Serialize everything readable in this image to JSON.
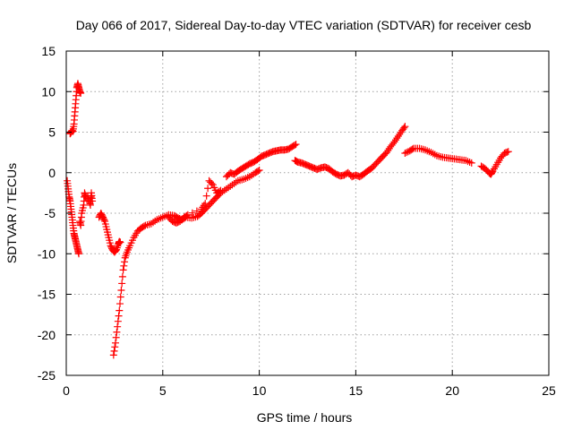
{
  "chart_data": {
    "type": "scatter",
    "title": "Day 066 of 2017, Sidereal Day-to-day VTEC variation (SDTVAR) for receiver cesb",
    "xlabel": "GPS time / hours",
    "ylabel": "SDTVAR / TECUs",
    "xlim": [
      0,
      25
    ],
    "ylim": [
      -25,
      15
    ],
    "xticks": [
      0,
      5,
      10,
      15,
      20,
      25
    ],
    "yticks": [
      -25,
      -20,
      -15,
      -10,
      -5,
      0,
      5,
      10,
      15
    ],
    "xtick_labels": [
      "0",
      "5",
      "10",
      "15",
      "20",
      "25"
    ],
    "ytick_labels": [
      "-25",
      "-20",
      "-15",
      "-10",
      "-5",
      "0",
      "5",
      "10",
      "15"
    ],
    "grid": true,
    "marker": "+",
    "color": "#ff0000",
    "series": [
      {
        "name": "s1",
        "points": [
          [
            0.05,
            -1
          ],
          [
            0.1,
            -2
          ],
          [
            0.15,
            -3
          ],
          [
            0.2,
            -3.5
          ],
          [
            0.25,
            -4.5
          ],
          [
            0.3,
            -5.5
          ],
          [
            0.35,
            -6.5
          ],
          [
            0.4,
            -7.5
          ],
          [
            0.45,
            -8
          ],
          [
            0.5,
            -8.5
          ],
          [
            0.55,
            -9
          ],
          [
            0.6,
            -9.5
          ],
          [
            0.65,
            -10
          ]
        ]
      },
      {
        "name": "s2",
        "points": [
          [
            0.2,
            4.8
          ],
          [
            0.25,
            5
          ],
          [
            0.3,
            5.2
          ],
          [
            0.35,
            5.1
          ],
          [
            0.4,
            6
          ],
          [
            0.45,
            7.5
          ],
          [
            0.5,
            9
          ],
          [
            0.55,
            10.5
          ],
          [
            0.6,
            11
          ],
          [
            0.65,
            10.5
          ],
          [
            0.7,
            10
          ],
          [
            0.75,
            9.8
          ]
        ]
      },
      {
        "name": "s3",
        "points": [
          [
            0.7,
            -6
          ],
          [
            0.75,
            -6.5
          ],
          [
            0.8,
            -5
          ],
          [
            0.9,
            -4
          ],
          [
            0.95,
            -2.5
          ],
          [
            1.0,
            -3
          ],
          [
            1.2,
            -3.5
          ],
          [
            1.25,
            -4
          ],
          [
            1.3,
            -2.5
          ],
          [
            1.35,
            -3.5
          ]
        ]
      },
      {
        "name": "s4",
        "points": [
          [
            1.7,
            -5.5
          ],
          [
            1.8,
            -5
          ],
          [
            1.9,
            -5.5
          ],
          [
            2.0,
            -6
          ],
          [
            2.1,
            -7
          ],
          [
            2.2,
            -8
          ],
          [
            2.3,
            -9
          ],
          [
            2.4,
            -9.5
          ],
          [
            2.5,
            -9.8
          ],
          [
            2.6,
            -9.5
          ],
          [
            2.7,
            -8.8
          ],
          [
            2.75,
            -8.5
          ],
          [
            2.8,
            -8.6
          ]
        ]
      },
      {
        "name": "s5",
        "points": [
          [
            2.45,
            -22.5
          ],
          [
            2.55,
            -21
          ],
          [
            2.65,
            -19
          ],
          [
            2.75,
            -17
          ],
          [
            2.85,
            -14.5
          ],
          [
            2.95,
            -12
          ],
          [
            3.05,
            -10.5
          ],
          [
            3.15,
            -9.8
          ],
          [
            3.3,
            -9
          ],
          [
            3.5,
            -8
          ],
          [
            3.7,
            -7.2
          ],
          [
            3.9,
            -6.8
          ],
          [
            4.1,
            -6.5
          ],
          [
            4.4,
            -6.3
          ],
          [
            4.7,
            -5.8
          ],
          [
            5.0,
            -5.5
          ],
          [
            5.3,
            -5.2
          ],
          [
            5.6,
            -5.3
          ],
          [
            5.8,
            -5.6
          ],
          [
            6.0,
            -5.8
          ],
          [
            6.2,
            -5.5
          ],
          [
            6.5,
            -5.6
          ],
          [
            6.8,
            -5.4
          ],
          [
            7.0,
            -5
          ],
          [
            7.2,
            -4.5
          ],
          [
            7.4,
            -4
          ],
          [
            7.6,
            -3.5
          ],
          [
            7.8,
            -3
          ],
          [
            8.0,
            -2.5
          ],
          [
            8.3,
            -2
          ],
          [
            8.6,
            -1.5
          ],
          [
            8.9,
            -1
          ],
          [
            9.2,
            -0.8
          ],
          [
            9.5,
            -0.5
          ],
          [
            9.8,
            0
          ],
          [
            10.0,
            0.3
          ]
        ]
      },
      {
        "name": "s6",
        "points": [
          [
            5.3,
            -5.5
          ],
          [
            5.5,
            -6
          ],
          [
            5.7,
            -6.2
          ],
          [
            5.9,
            -6
          ],
          [
            6.1,
            -5.5
          ],
          [
            6.3,
            -5.2
          ],
          [
            7.0,
            -4.5
          ],
          [
            7.2,
            -3.8
          ],
          [
            7.4,
            -1
          ],
          [
            7.6,
            -1.5
          ],
          [
            7.8,
            -2.5
          ],
          [
            8.0,
            -2.2
          ]
        ]
      },
      {
        "name": "s7",
        "points": [
          [
            8.3,
            -0.5
          ],
          [
            8.5,
            0
          ],
          [
            8.7,
            -0.2
          ],
          [
            8.9,
            0.2
          ],
          [
            9.1,
            0.5
          ],
          [
            9.3,
            0.8
          ],
          [
            9.5,
            1.1
          ],
          [
            9.7,
            1.3
          ],
          [
            9.9,
            1.6
          ],
          [
            10.1,
            2
          ],
          [
            10.3,
            2.2
          ],
          [
            10.5,
            2.4
          ],
          [
            10.7,
            2.6
          ],
          [
            10.9,
            2.7
          ],
          [
            11.1,
            2.8
          ],
          [
            11.3,
            2.8
          ],
          [
            11.5,
            2.9
          ],
          [
            11.7,
            3.2
          ],
          [
            11.9,
            3.5
          ]
        ]
      },
      {
        "name": "s8",
        "points": [
          [
            11.85,
            1.5
          ],
          [
            12.0,
            1.3
          ],
          [
            12.2,
            1.2
          ],
          [
            12.4,
            1
          ],
          [
            12.6,
            0.8
          ],
          [
            12.8,
            0.6
          ],
          [
            13.0,
            0.4
          ],
          [
            13.2,
            0.6
          ],
          [
            13.4,
            0.7
          ],
          [
            13.6,
            0.5
          ],
          [
            13.8,
            0.1
          ],
          [
            14.0,
            -0.2
          ],
          [
            14.2,
            -0.4
          ],
          [
            14.4,
            -0.3
          ],
          [
            14.6,
            0
          ],
          [
            14.8,
            -0.5
          ],
          [
            15.0,
            -0.3
          ],
          [
            15.2,
            -0.5
          ],
          [
            15.4,
            -0.2
          ],
          [
            15.6,
            0.2
          ],
          [
            15.8,
            0.5
          ],
          [
            16.0,
            1
          ],
          [
            16.2,
            1.5
          ],
          [
            16.4,
            2
          ],
          [
            16.6,
            2.5
          ],
          [
            16.8,
            3.2
          ],
          [
            17.0,
            3.8
          ],
          [
            17.2,
            4.5
          ],
          [
            17.4,
            5.2
          ],
          [
            17.55,
            5.7
          ]
        ]
      },
      {
        "name": "s9",
        "points": [
          [
            17.55,
            2.4
          ],
          [
            17.8,
            2.7
          ],
          [
            18.0,
            3
          ],
          [
            18.3,
            3
          ],
          [
            18.6,
            2.8
          ],
          [
            18.9,
            2.5
          ],
          [
            19.2,
            2.1
          ],
          [
            19.5,
            1.9
          ],
          [
            19.8,
            1.8
          ],
          [
            20.1,
            1.7
          ],
          [
            20.4,
            1.6
          ],
          [
            20.7,
            1.5
          ],
          [
            21.0,
            1.2
          ]
        ]
      },
      {
        "name": "s10",
        "points": [
          [
            21.5,
            0.8
          ],
          [
            21.7,
            0.5
          ],
          [
            21.9,
            0
          ],
          [
            22.0,
            -0.2
          ],
          [
            22.1,
            0.2
          ],
          [
            22.3,
            1
          ],
          [
            22.5,
            1.8
          ],
          [
            22.7,
            2.4
          ],
          [
            22.9,
            2.6
          ]
        ]
      }
    ]
  }
}
